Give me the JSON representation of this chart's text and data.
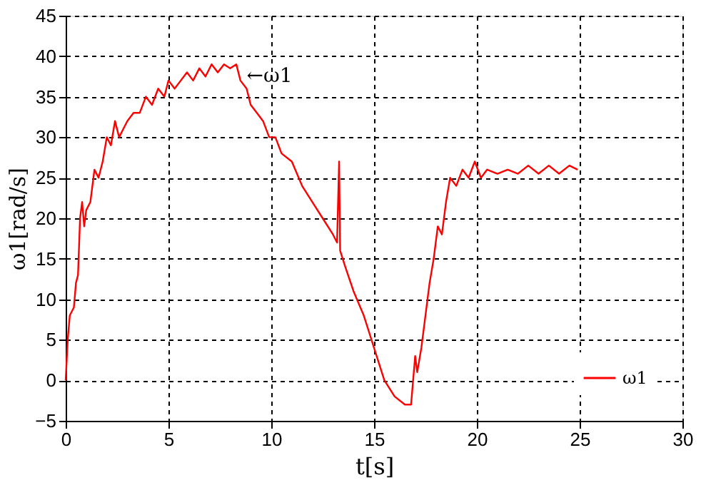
{
  "chart_data": {
    "type": "line",
    "xlabel": "t[s]",
    "ylabel": "ω1[rad/s]",
    "xlim": [
      0,
      30
    ],
    "xticks": [
      0,
      5,
      10,
      15,
      20,
      25,
      30
    ],
    "ylim": [
      -5,
      45
    ],
    "yticks": [
      -5,
      0,
      5,
      10,
      15,
      20,
      25,
      30,
      35,
      40,
      45
    ],
    "grid": true,
    "legend": "bottom right",
    "marker": "none",
    "line_style": "solid",
    "annotations": [
      {
        "text": "←ω1",
        "x": 8.8,
        "y": 37.5
      }
    ],
    "series": [
      {
        "name": "ω1",
        "color": "#ff0000",
        "x": [
          0,
          0.1,
          0.2,
          0.4,
          0.5,
          0.6,
          0.7,
          0.8,
          0.9,
          1.0,
          1.2,
          1.4,
          1.6,
          1.8,
          2.0,
          2.2,
          2.4,
          2.6,
          2.8,
          3.0,
          3.3,
          3.6,
          3.9,
          4.2,
          4.5,
          4.8,
          5.0,
          5.3,
          5.6,
          5.9,
          6.2,
          6.5,
          6.8,
          7.1,
          7.4,
          7.7,
          8.0,
          8.3,
          8.5,
          8.8,
          9.0,
          9.3,
          9.6,
          9.9,
          10.2,
          10.5,
          11.0,
          11.5,
          12.0,
          12.5,
          13.0,
          13.2,
          13.3,
          13.35,
          13.6,
          14.0,
          14.5,
          15.0,
          15.5,
          16.0,
          16.5,
          16.8,
          16.9,
          17.0,
          17.1,
          17.3,
          17.5,
          17.7,
          17.9,
          18.1,
          18.3,
          18.5,
          18.7,
          19.0,
          19.3,
          19.6,
          19.9,
          20.2,
          20.5,
          21,
          21.5,
          22,
          22.5,
          23,
          23.5,
          24,
          24.5,
          24.9
        ],
        "values": [
          0,
          5,
          8,
          9,
          12,
          13,
          20,
          22,
          19,
          21,
          22,
          26,
          25,
          27,
          30,
          29,
          32,
          30,
          31,
          32,
          33,
          33,
          35,
          34,
          36,
          35,
          37,
          36,
          37,
          38,
          37,
          38.5,
          37.5,
          39,
          38,
          39,
          38.5,
          39,
          37,
          36,
          34,
          33,
          32,
          30,
          30,
          28,
          27,
          24,
          22,
          20,
          18,
          17,
          27,
          16,
          14,
          11,
          8,
          4,
          0,
          -2,
          -3,
          -3,
          0,
          3,
          1,
          4,
          8,
          12,
          15,
          19,
          18,
          22,
          25,
          24,
          26,
          25,
          27,
          25,
          26,
          25.5,
          26,
          25.5,
          26.5,
          25.5,
          26.5,
          25.5,
          26.5,
          26
        ]
      }
    ]
  }
}
